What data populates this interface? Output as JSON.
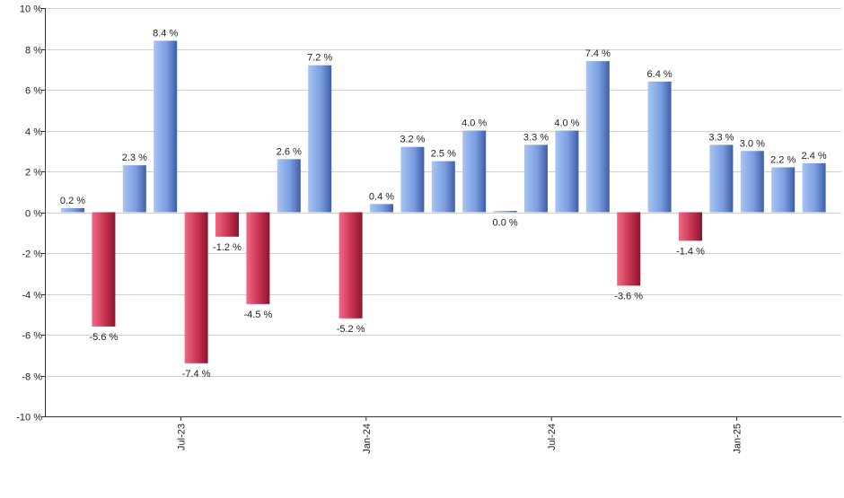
{
  "colors": {
    "positive_light": "#a7c4f2",
    "positive_dark": "#3e5fa8",
    "negative_light": "#f06a86",
    "negative_dark": "#8c1530",
    "grid": "#cfcfcf",
    "axis": "#333333",
    "text": "#222222"
  },
  "chart_data": {
    "type": "bar",
    "title": "",
    "xlabel": "",
    "ylabel": "",
    "ylim": [
      -10,
      10
    ],
    "yticks": [
      -10,
      -8,
      -6,
      -4,
      -2,
      0,
      2,
      4,
      6,
      8,
      10
    ],
    "ytick_labels": [
      "-10 %",
      "-8 %",
      "-6 %",
      "-4 %",
      "-2 %",
      "0 %",
      "2 %",
      "4 %",
      "6 %",
      "8 %",
      "10 %"
    ],
    "grid": true,
    "x_tick_labels": [
      {
        "after_bar_index": 3,
        "label": "Jul-23"
      },
      {
        "after_bar_index": 9,
        "label": "Jan-24"
      },
      {
        "after_bar_index": 15,
        "label": "Jul-24"
      },
      {
        "after_bar_index": 21,
        "label": "Jan-25"
      }
    ],
    "values": [
      0.2,
      -5.6,
      2.3,
      8.4,
      -7.4,
      -1.2,
      -4.5,
      2.6,
      7.2,
      -5.2,
      0.4,
      3.2,
      2.5,
      4.0,
      0.0,
      3.3,
      4.0,
      7.4,
      -3.6,
      6.4,
      -1.4,
      3.3,
      3.0,
      2.2,
      2.4
    ],
    "labels": [
      "0.2 %",
      "-5.6 %",
      "2.3 %",
      "8.4 %",
      "-7.4 %",
      "-1.2 %",
      "-4.5 %",
      "2.6 %",
      "7.2 %",
      "-5.2 %",
      "0.4 %",
      "3.2 %",
      "2.5 %",
      "4.0 %",
      "0.0 %",
      "3.3 %",
      "4.0 %",
      "7.4 %",
      "-3.6 %",
      "6.4 %",
      "-1.4 %",
      "3.3 %",
      "3.0 %",
      "2.2 %",
      "2.4 %"
    ]
  }
}
